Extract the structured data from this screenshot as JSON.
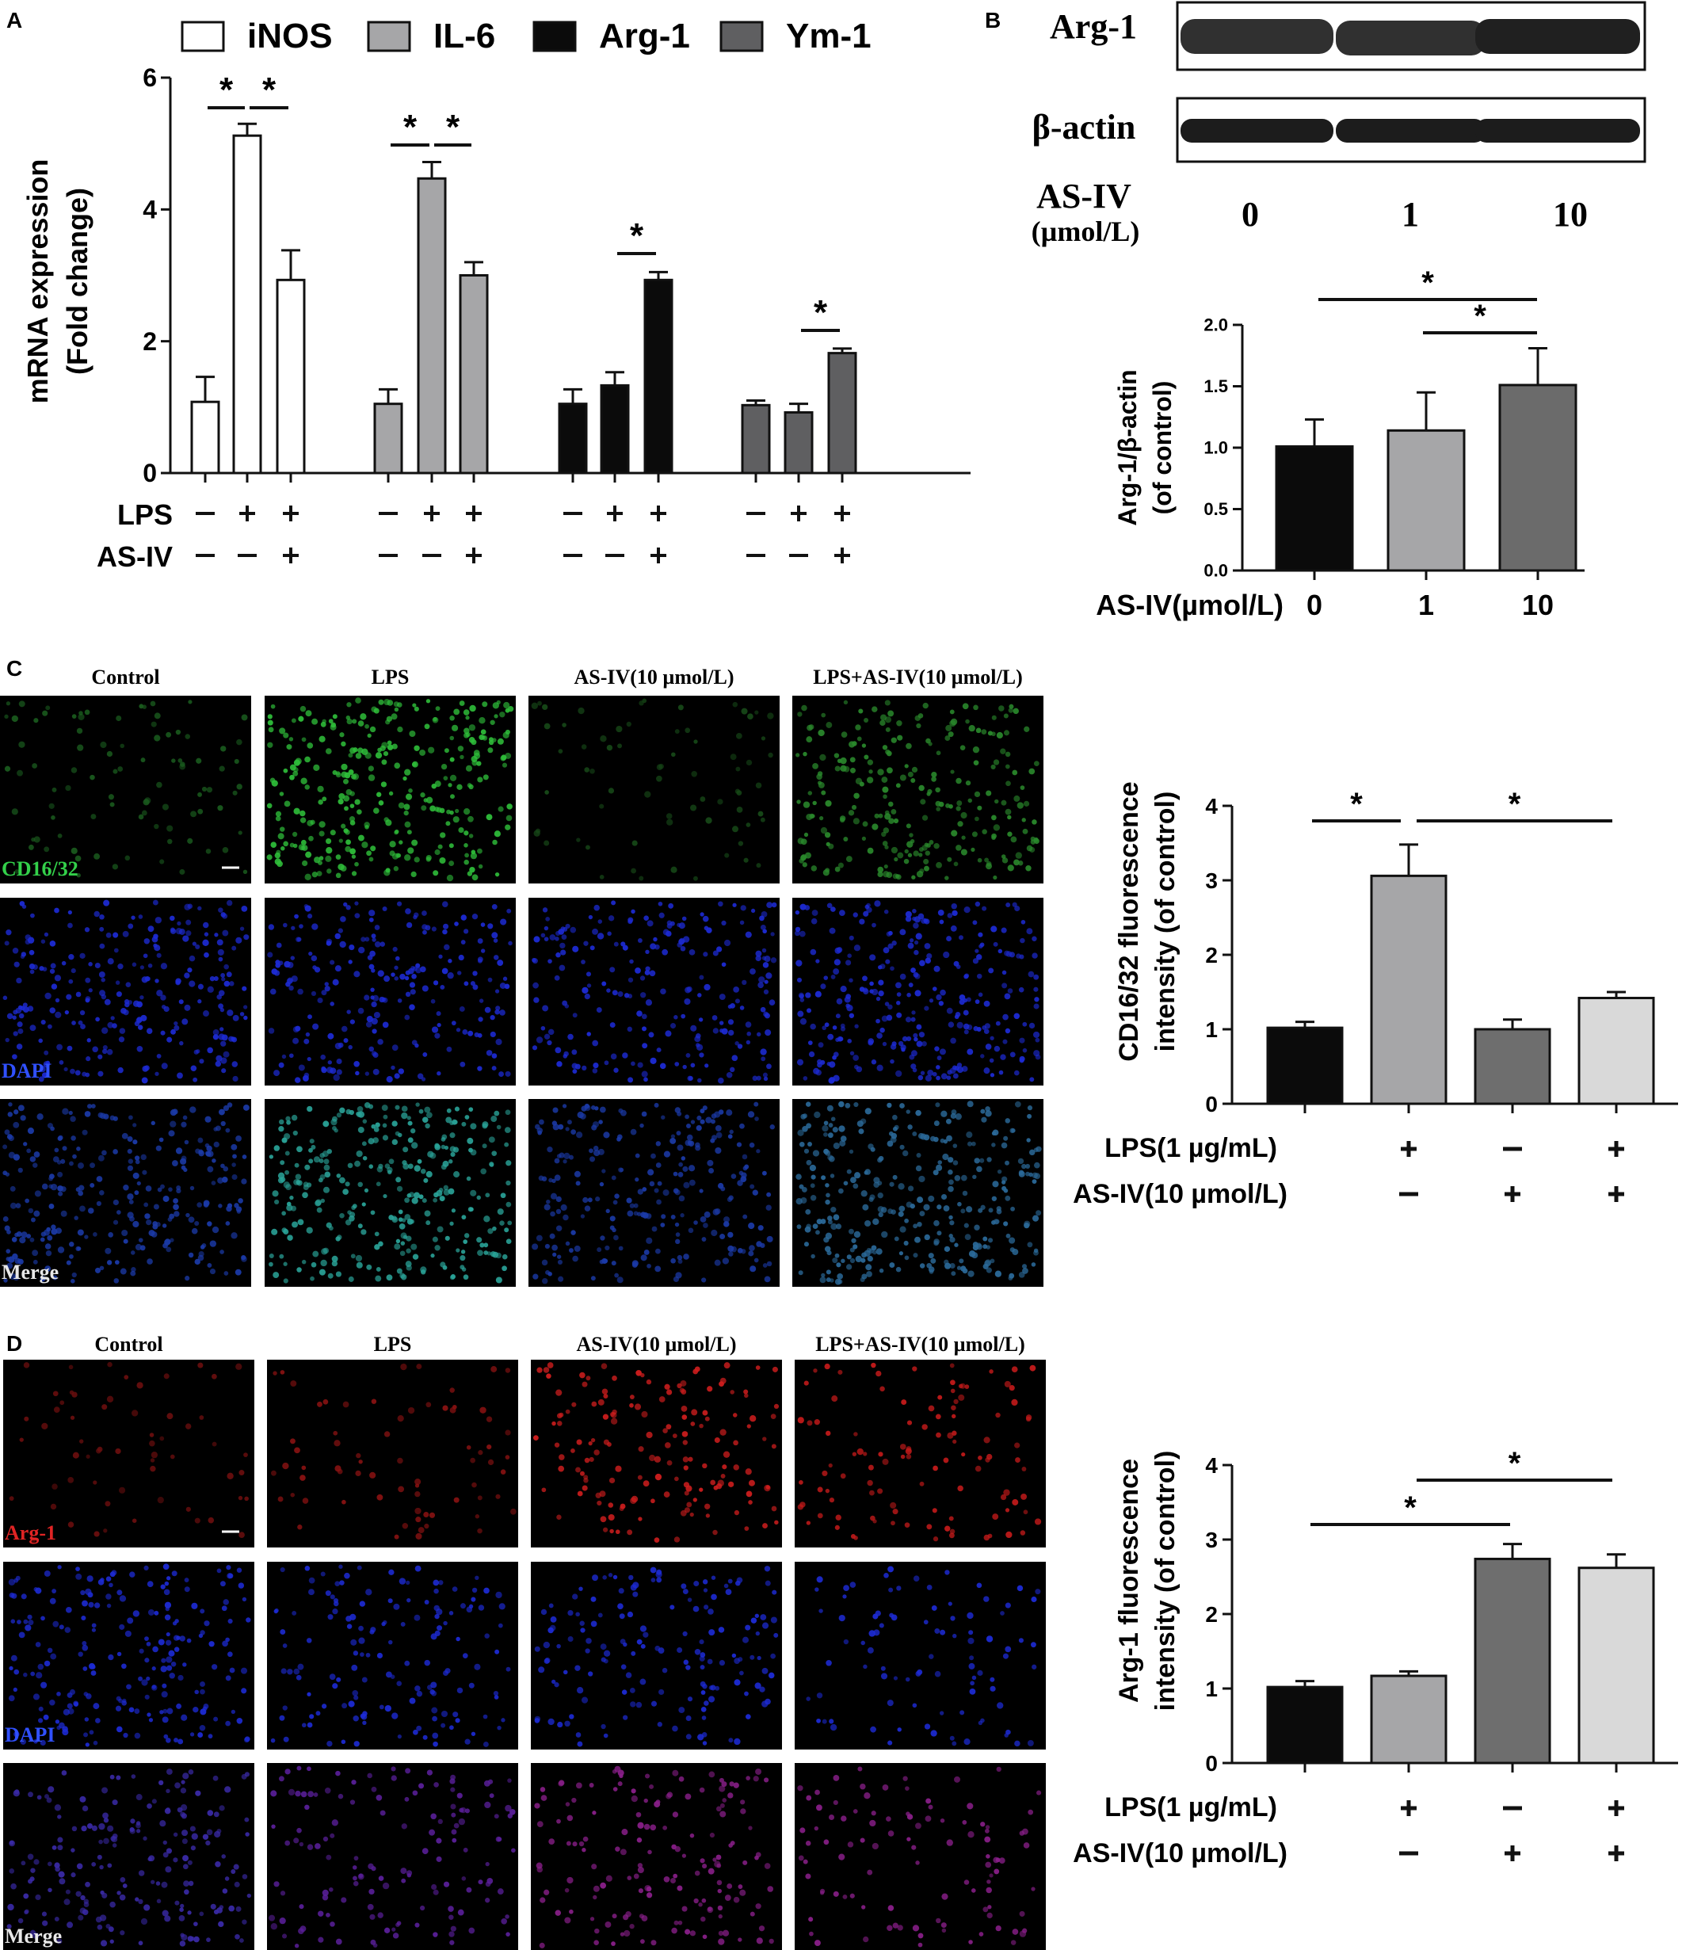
{
  "panels": {
    "A": {
      "letter": "A"
    },
    "B": {
      "letter": "B"
    },
    "C": {
      "letter": "C"
    },
    "D": {
      "letter": "D"
    }
  },
  "chart_data": [
    {
      "panel": "A",
      "type": "bar",
      "title": "",
      "ylabel": [
        "mRNA expression",
        "(Fold change)"
      ],
      "ylim": [
        0,
        6
      ],
      "yticks": [
        "0",
        "2",
        "4",
        "6"
      ],
      "legend": [
        "iNOS",
        "IL-6",
        "Arg-1",
        "Ym-1"
      ],
      "legend_placement": "top",
      "colors": [
        "#ffffff",
        "#a6a6a8",
        "#0b0b0b",
        "#5f5f61"
      ],
      "conditions": {
        "LPS": "LPS",
        "AS-IV": "AS-IV",
        "rows": [
          [
            "—",
            "+",
            "+"
          ],
          [
            "—",
            "—",
            "+"
          ]
        ]
      },
      "series": [
        {
          "name": "iNOS",
          "values": [
            1.08,
            5.12,
            2.93
          ],
          "errors": [
            0.38,
            0.18,
            0.45
          ]
        },
        {
          "name": "IL-6",
          "values": [
            1.05,
            4.47,
            3.0
          ],
          "errors": [
            0.22,
            0.25,
            0.2
          ]
        },
        {
          "name": "Arg-1",
          "values": [
            1.05,
            1.33,
            2.93
          ],
          "errors": [
            0.22,
            0.2,
            0.12
          ]
        },
        {
          "name": "Ym-1",
          "values": [
            1.03,
            0.92,
            1.82
          ],
          "errors": [
            0.07,
            0.13,
            0.07
          ]
        }
      ],
      "significance": [
        "*",
        "*",
        "*",
        "*",
        "*",
        "*"
      ]
    },
    {
      "panel": "B",
      "type": "bar",
      "title": "",
      "ylabel": [
        "Arg-1/β-actin",
        "(of control)"
      ],
      "xlabel": "AS-IV(µmol/L)",
      "categories": [
        "0",
        "1",
        "10"
      ],
      "values": [
        1.01,
        1.14,
        1.51
      ],
      "errors": [
        0.22,
        0.31,
        0.3
      ],
      "colors": [
        "#0b0b0b",
        "#a6a6a8",
        "#6b6b6b"
      ],
      "ylim": [
        0,
        2.0
      ],
      "yticks": [
        "0.0",
        "0.5",
        "1.0",
        "1.5",
        "2.0"
      ],
      "significance": [
        "*",
        "*"
      ]
    },
    {
      "panel": "C",
      "type": "bar",
      "title": "",
      "ylabel": [
        "CD16/32 fluorescence",
        "intensity (of control)"
      ],
      "categories": [
        "Control",
        "LPS",
        "AS-IV",
        "LPS+AS-IV"
      ],
      "values": [
        1.02,
        3.06,
        1.0,
        1.42
      ],
      "errors": [
        0.08,
        0.42,
        0.13,
        0.08
      ],
      "colors": [
        "#0b0b0b",
        "#a6a6a8",
        "#6e6e6e",
        "#d9d9d9"
      ],
      "ylim": [
        0,
        4
      ],
      "yticks": [
        "0",
        "1",
        "2",
        "3",
        "4"
      ],
      "conditions": {
        "LPS": "LPS(1 µg/mL)",
        "AS-IV": "AS-IV(10 µmol/L)",
        "rows": [
          [
            "—",
            "+",
            "—",
            "+"
          ],
          [
            "—",
            "—",
            "+",
            "+"
          ]
        ]
      },
      "significance": [
        "*",
        "*"
      ]
    },
    {
      "panel": "D",
      "type": "bar",
      "title": "",
      "ylabel": [
        "Arg-1 fluorescence",
        "intensity (of control)"
      ],
      "categories": [
        "Control",
        "LPS",
        "AS-IV",
        "LPS+AS-IV"
      ],
      "values": [
        1.02,
        1.17,
        2.74,
        2.62
      ],
      "errors": [
        0.08,
        0.06,
        0.2,
        0.18
      ],
      "colors": [
        "#0b0b0b",
        "#a6a6a8",
        "#6e6e6e",
        "#d9d9d9"
      ],
      "ylim": [
        0,
        4
      ],
      "yticks": [
        "0",
        "1",
        "2",
        "3",
        "4"
      ],
      "conditions": {
        "LPS": "LPS(1 µg/mL)",
        "AS-IV": "AS-IV(10 µmol/L)",
        "rows": [
          [
            "—",
            "+",
            "—",
            "+"
          ],
          [
            "—",
            "—",
            "+",
            "+"
          ]
        ]
      },
      "significance": [
        "*",
        "*"
      ]
    }
  ],
  "blot": {
    "rows": [
      "Arg-1",
      "β-actin"
    ],
    "dose_label": "AS-IV",
    "dose_unit": "(µmol/L)",
    "doses": [
      "0",
      "1",
      "10"
    ]
  },
  "micrographs": {
    "C": {
      "columns": [
        "Control",
        "LPS",
        "AS-IV(10 µmol/L)",
        "LPS+AS-IV(10 µmol/L)"
      ],
      "rows": [
        "CD16/32",
        "DAPI",
        "Merge"
      ],
      "row_colors": [
        "#33d04a",
        "#3050ff",
        "#e8e8e8"
      ]
    },
    "D": {
      "columns": [
        "Control",
        "LPS",
        "AS-IV(10 µmol/L)",
        "LPS+AS-IV(10 µmol/L)"
      ],
      "rows": [
        "Arg-1",
        "DAPI",
        "Merge"
      ],
      "row_colors": [
        "#e02424",
        "#3050ff",
        "#e8e8e8"
      ]
    }
  }
}
